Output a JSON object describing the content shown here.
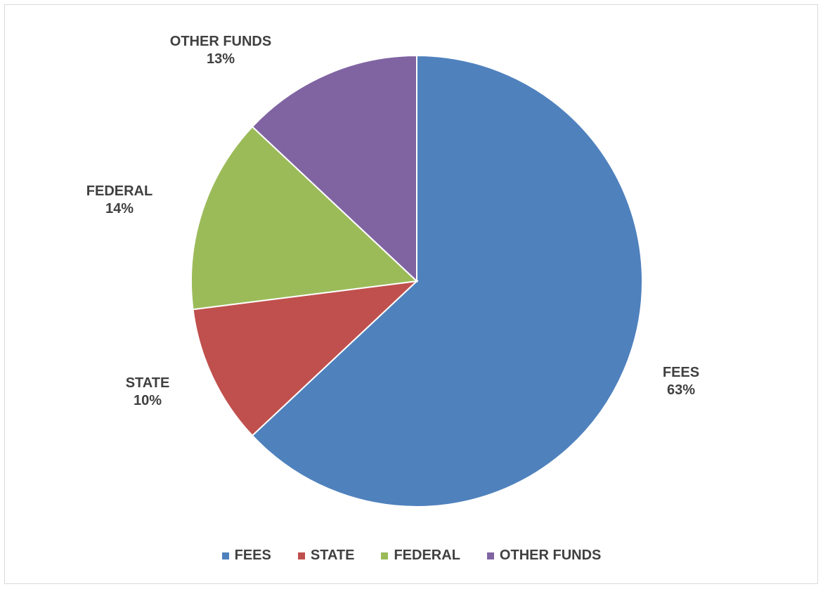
{
  "chart_data": {
    "type": "pie",
    "categories": [
      "FEES",
      "STATE",
      "FEDERAL",
      "OTHER FUNDS"
    ],
    "values": [
      63,
      10,
      14,
      13
    ],
    "data_labels": [
      {
        "name": "FEES",
        "value": "63%"
      },
      {
        "name": "STATE",
        "value": "10%"
      },
      {
        "name": "FEDERAL",
        "value": "14%"
      },
      {
        "name": "OTHER FUNDS",
        "value": "13%"
      }
    ],
    "colors": [
      "#4f81bd",
      "#c0504d",
      "#9bbb59",
      "#8064a2"
    ],
    "start_angle": "12 o'clock",
    "direction": "clockwise",
    "legend_position": "bottom",
    "legend": [
      "FEES",
      "STATE",
      "FEDERAL",
      "OTHER FUNDS"
    ]
  }
}
